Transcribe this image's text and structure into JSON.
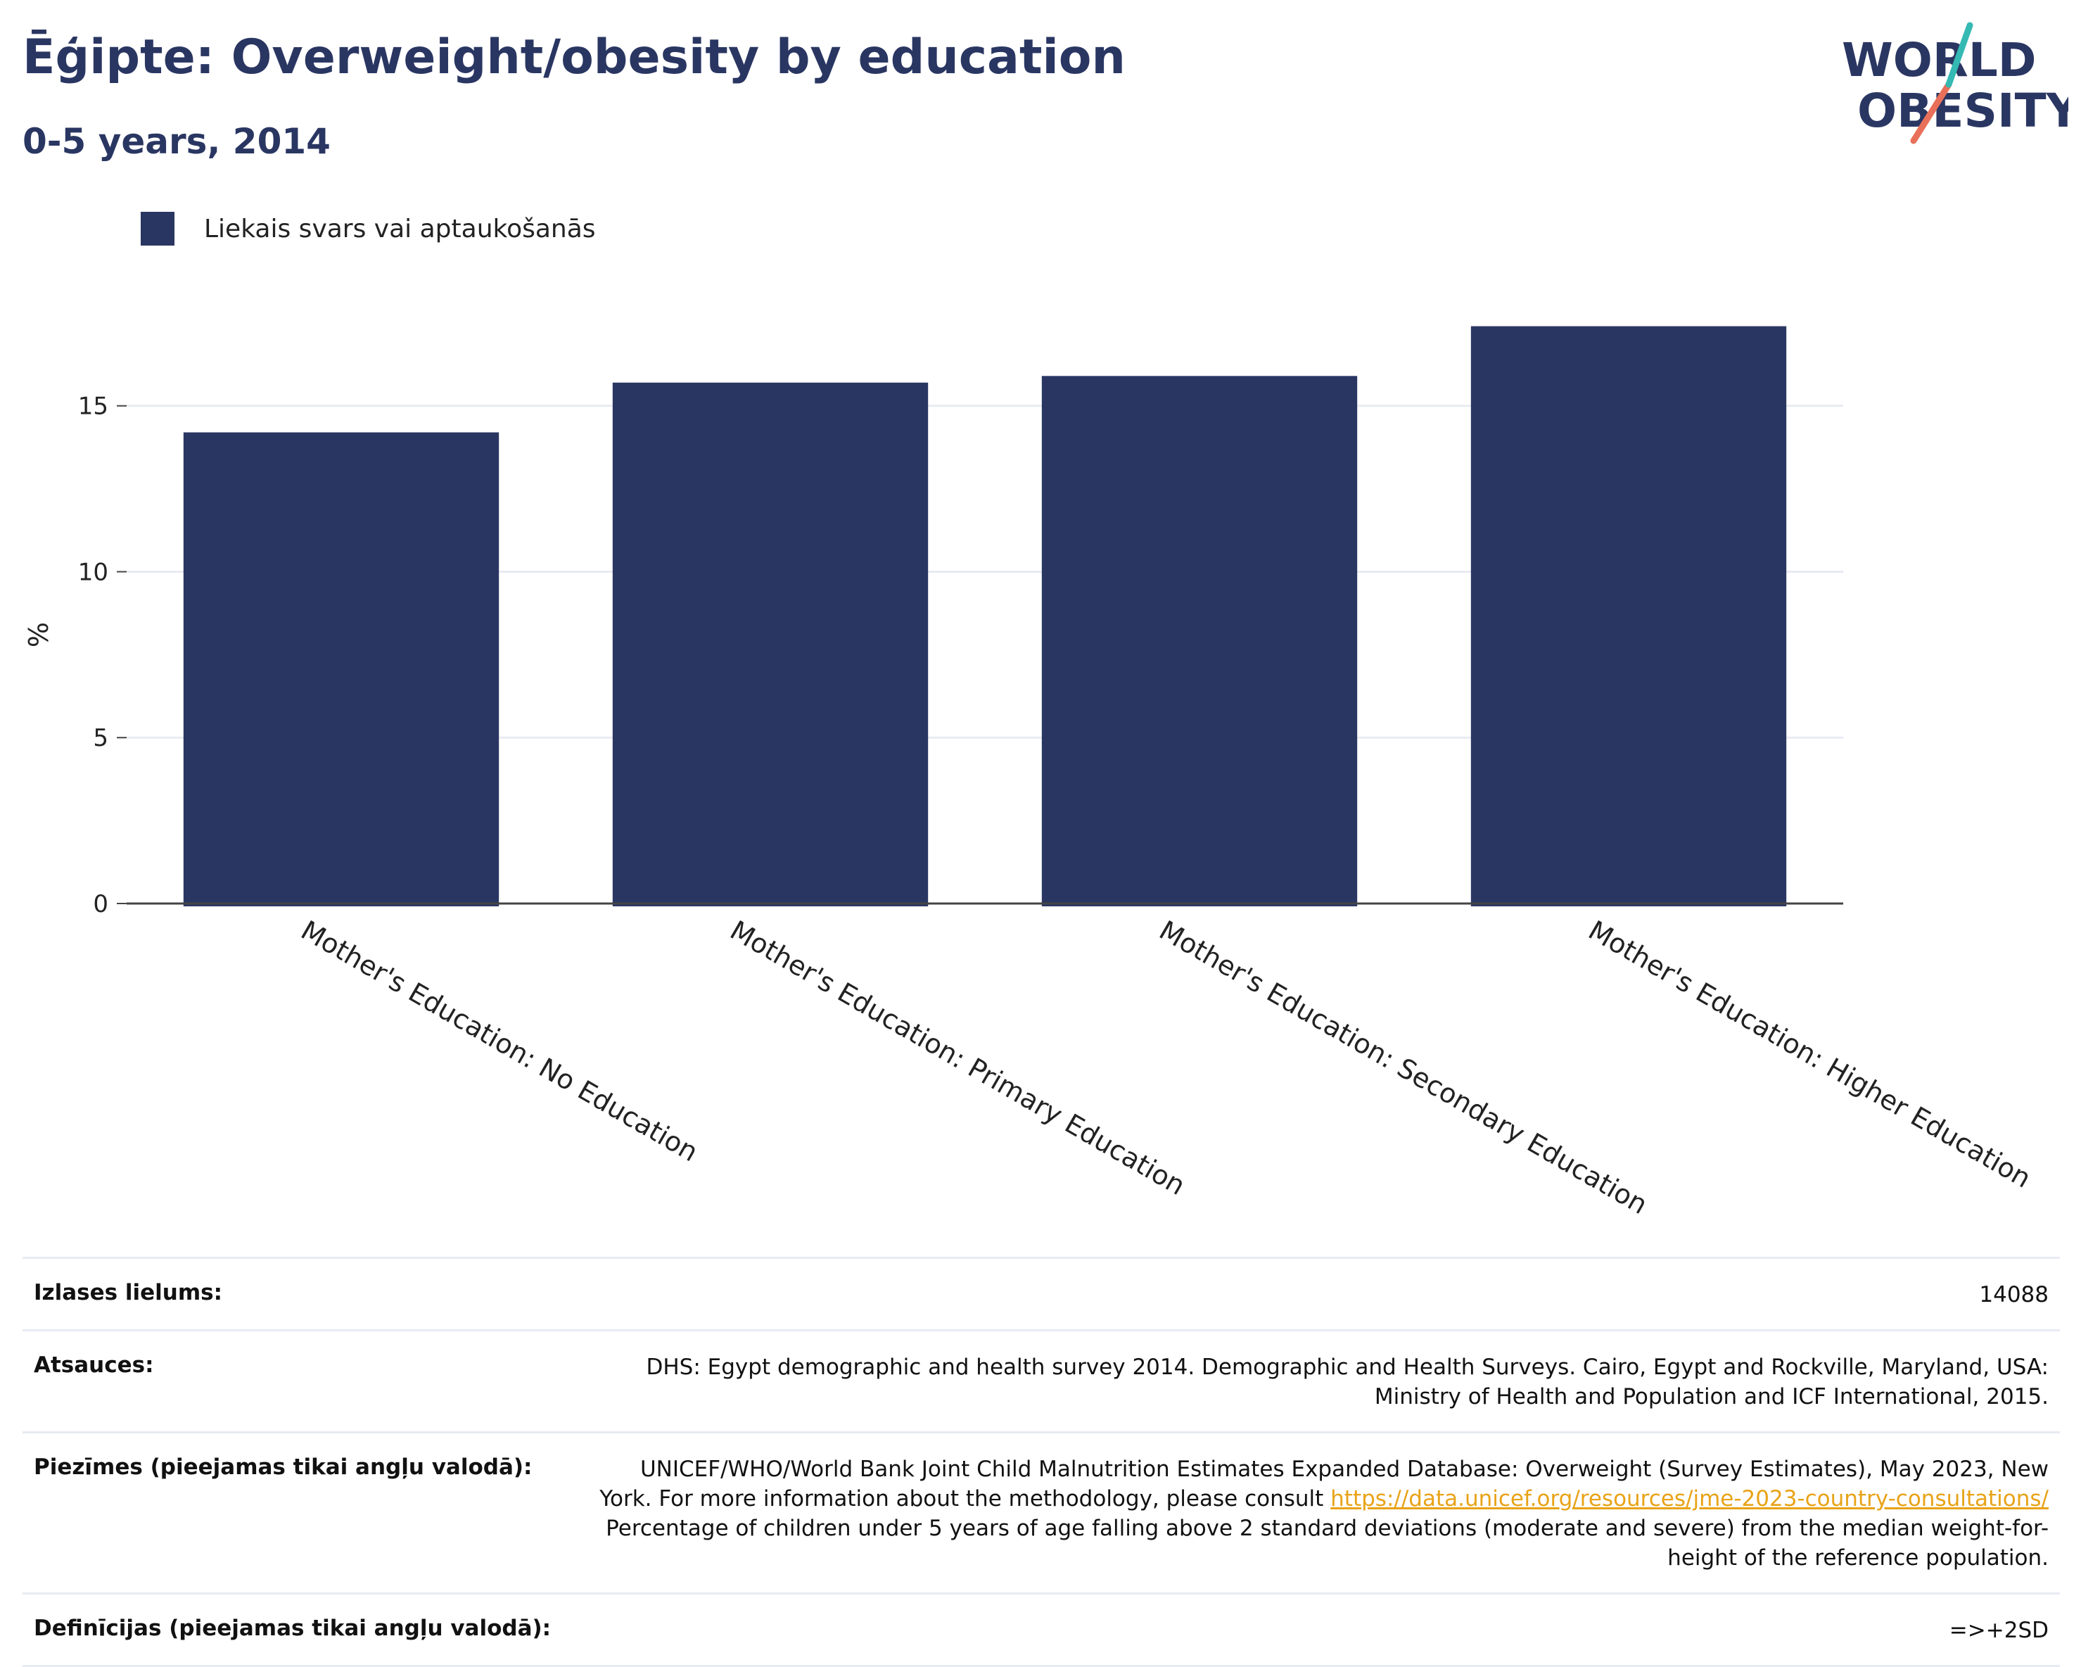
{
  "header": {
    "title": "Ēģipte: Overweight/obesity by education",
    "subtitle": "0-5 years, 2014"
  },
  "logo": {
    "line1": "WORLD",
    "line2": "OBESITY"
  },
  "colors": {
    "bar": "#2a3662",
    "title": "#2a3662",
    "link": "#e8a317",
    "logo_teal": "#35b9b3",
    "logo_coral": "#e8705a"
  },
  "chart_data": {
    "type": "bar",
    "categories": [
      "Mother's Education: No Education",
      "Mother's Education: Primary Education",
      "Mother's Education: Secondary Education",
      "Mother's Education: Higher Education"
    ],
    "series": [
      {
        "name": "Liekais svars vai aptaukošanās",
        "values": [
          14.2,
          15.7,
          15.9,
          17.4
        ]
      }
    ],
    "ylabel": "%",
    "ylim": [
      0,
      17.9
    ],
    "yticks": [
      0,
      5,
      10,
      15
    ],
    "grid": true,
    "legend": "top-left"
  },
  "info": {
    "sample_size": {
      "label": "Izlases lielums:",
      "value": "14088"
    },
    "references": {
      "label": "Atsauces:",
      "lines": [
        "DHS: Egypt demographic and health survey 2014. Demographic and Health Surveys. Cairo, Egypt and Rockville, Maryland, USA:",
        "Ministry of Health and Population and ICF International, 2015."
      ]
    },
    "notes": {
      "label": "Piezīmes (pieejamas tikai angļu valodā):",
      "line1": "UNICEF/WHO/World Bank Joint Child Malnutrition Estimates Expanded Database: Overweight (Survey Estimates), May 2023, New",
      "line2_prefix": "York. For more information about the methodology, please consult ",
      "link": "https://data.unicef.org/resources/jme-2023-country-consultations/",
      "line3": "Percentage of children under 5 years of age falling above 2 standard deviations (moderate and severe) from the median weight-for-",
      "line4": "height of the reference population."
    },
    "definitions": {
      "label": "Definīcijas (pieejamas tikai angļu valodā):",
      "value": "=>+2SD"
    }
  }
}
